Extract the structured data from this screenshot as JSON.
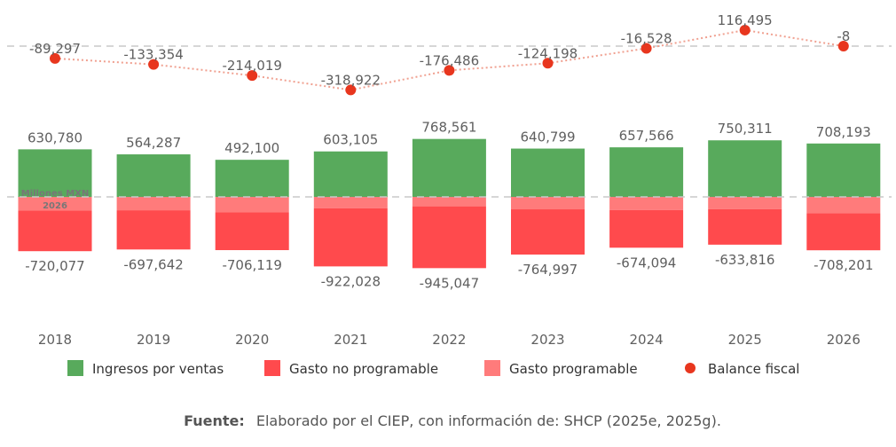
{
  "chart_data": {
    "type": "bar",
    "categories": [
      "2018",
      "2019",
      "2020",
      "2021",
      "2022",
      "2023",
      "2024",
      "2025",
      "2026"
    ],
    "series": [
      {
        "name": "Ingresos por ventas",
        "type": "bar",
        "color": "#58AA5C",
        "values": [
          630780,
          564287,
          492100,
          603105,
          768561,
          640799,
          657566,
          750311,
          708193
        ],
        "labels": [
          "630,780",
          "564,287",
          "492,100",
          "603,105",
          "768,561",
          "640,799",
          "657,566",
          "750,311",
          "708,193"
        ]
      },
      {
        "name": "Gasto no programable",
        "type": "bar",
        "color": "#FF4A4D",
        "values": [
          -540000,
          -520000,
          -500000,
          -770000,
          -820000,
          -600000,
          -500000,
          -470000,
          -490000
        ]
      },
      {
        "name": "Gasto programable",
        "type": "bar",
        "color": "#FF7B7B",
        "values": [
          -180077,
          -177642,
          -206119,
          -152028,
          -125047,
          -164997,
          -174094,
          -163816,
          -218201
        ]
      },
      {
        "name": "Balance fiscal",
        "type": "line",
        "color": "#E8361E",
        "values": [
          -89297,
          -133354,
          -214019,
          -318922,
          -176486,
          -124198,
          -16528,
          116495,
          -8
        ],
        "labels": [
          "-89,297",
          "-133,354",
          "-214,019",
          "-318,922",
          "-176,486",
          "-124,198",
          "-16,528",
          "116,495",
          "-8"
        ]
      }
    ],
    "gasto_total_labels": [
      "-720,077",
      "-697,642",
      "-706,119",
      "-922,028",
      "-945,047",
      "-764,997",
      "-674,094",
      "-633,816",
      "-708,201"
    ],
    "gasto_total_values": [
      -720077,
      -697642,
      -706119,
      -922028,
      -945047,
      -764997,
      -674094,
      -633816,
      -708201
    ],
    "unit_label_line1": "Millones MXN",
    "unit_label_line2": "2026",
    "legend_position": "bottom",
    "source_label": "Fuente:",
    "source_text": "Elaborado por el CIEP, con información de: SHCP (2025e, 2025g)."
  }
}
